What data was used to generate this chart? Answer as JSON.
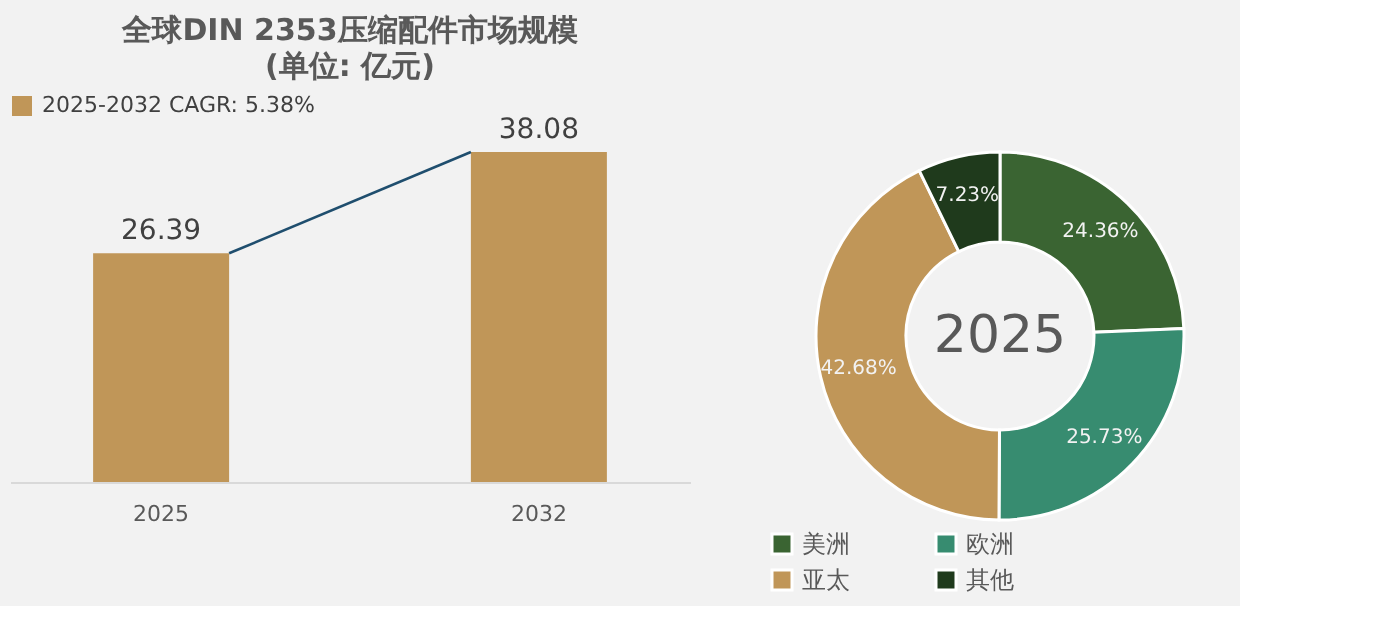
{
  "chart_data": [
    {
      "type": "bar",
      "title": "全球DIN 2353压缩配件市场规模",
      "subtitle": "(单位: 亿元)",
      "categories": [
        "2025",
        "2032"
      ],
      "legend": "top",
      "grid": false,
      "series": [
        {
          "name": "2025-2032 CAGR: 5.38%",
          "color": "#c09658",
          "values": [
            26.39,
            38.08
          ],
          "value_labels": [
            "26.39",
            "38.08"
          ]
        }
      ]
    },
    {
      "type": "donut",
      "categories": [
        "美洲",
        "欧洲",
        "亚太",
        "其他"
      ],
      "values": [
        24.36,
        25.73,
        42.68,
        7.23
      ],
      "colors": [
        "#3a6432",
        "#378c70",
        "#c09658",
        "#1f3a1c"
      ],
      "value_labels": [
        "24.36%",
        "25.73%",
        "42.68%",
        "7.23%"
      ],
      "annotations": [
        "2025"
      ],
      "legend": "bottom"
    }
  ]
}
